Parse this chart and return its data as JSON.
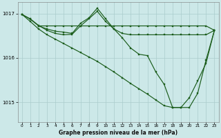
{
  "background_color": "#cce8e8",
  "grid_color": "#aacccc",
  "line_color": "#1a5c1a",
  "marker_color": "#1a5c1a",
  "xlabel": "Graphe pression niveau de la mer (hPa)",
  "ylim": [
    1014.55,
    1017.25
  ],
  "xlim": [
    -0.5,
    23.5
  ],
  "yticks": [
    1015,
    1016,
    1017
  ],
  "xticks": [
    0,
    1,
    2,
    3,
    4,
    5,
    6,
    7,
    8,
    9,
    10,
    11,
    12,
    13,
    14,
    15,
    16,
    17,
    18,
    19,
    20,
    21,
    22,
    23
  ],
  "s1x": [
    0,
    1,
    2,
    3,
    4,
    5,
    6,
    7,
    8,
    9,
    10,
    11,
    12,
    13,
    14,
    15,
    16,
    17,
    18,
    19,
    20,
    21,
    22,
    23
  ],
  "s1y": [
    1016.98,
    1016.87,
    1016.72,
    1016.72,
    1016.72,
    1016.72,
    1016.72,
    1016.72,
    1016.72,
    1016.72,
    1016.72,
    1016.72,
    1016.72,
    1016.72,
    1016.72,
    1016.72,
    1016.72,
    1016.72,
    1016.72,
    1016.72,
    1016.72,
    1016.72,
    1016.72,
    1016.62
  ],
  "s2x": [
    0,
    1,
    2,
    3,
    4,
    5,
    6,
    7,
    8,
    9,
    10,
    11,
    12,
    13,
    14,
    15,
    16,
    17,
    18,
    19,
    20,
    21,
    22,
    23
  ],
  "s2y": [
    1016.98,
    1016.88,
    1016.73,
    1016.62,
    1016.55,
    1016.52,
    1016.53,
    1016.72,
    1016.88,
    1017.05,
    1016.82,
    1016.65,
    1016.55,
    1016.52,
    1016.52,
    1016.52,
    1016.52,
    1016.52,
    1016.52,
    1016.52,
    1016.52,
    1016.52,
    1016.52,
    1016.62
  ],
  "s3x": [
    2,
    3,
    4,
    5,
    6,
    7,
    8,
    9,
    10,
    11,
    12,
    13,
    14,
    15,
    16,
    17,
    18,
    19,
    20,
    21,
    22,
    23
  ],
  "s3y": [
    1016.72,
    1016.65,
    1016.6,
    1016.58,
    1016.55,
    1016.78,
    1016.9,
    1017.12,
    1016.88,
    1016.65,
    1016.45,
    1016.22,
    1016.08,
    1016.05,
    1015.68,
    1015.4,
    1014.88,
    1014.88,
    1014.88,
    1015.2,
    1015.95,
    1016.62
  ],
  "s4x": [
    0,
    1,
    2,
    3,
    4,
    5,
    6,
    7,
    8,
    9,
    10,
    11,
    12,
    13,
    14,
    15,
    16,
    17,
    18,
    19,
    20,
    21,
    22,
    23
  ],
  "s4y": [
    1016.98,
    1016.82,
    1016.65,
    1016.52,
    1016.42,
    1016.32,
    1016.22,
    1016.12,
    1016.02,
    1015.92,
    1015.8,
    1015.68,
    1015.55,
    1015.42,
    1015.3,
    1015.18,
    1015.05,
    1014.92,
    1014.88,
    1014.88,
    1015.1,
    1015.48,
    1015.88,
    1016.62
  ]
}
